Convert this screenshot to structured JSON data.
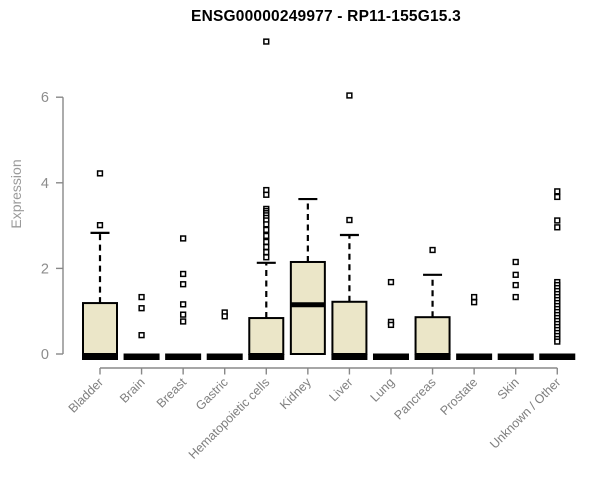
{
  "chart_data": {
    "type": "boxplot",
    "title": "ENSG00000249977 - RP11-155G15.3",
    "ylabel": "Expression",
    "xlabel": "",
    "yticks": [
      0,
      2,
      4,
      6
    ],
    "ylim": [
      0,
      7.6
    ],
    "grid": false,
    "legend": "none",
    "colors": {
      "box_fill": "#EBE6C8",
      "box_stroke": "#000000",
      "axis": "#888888",
      "tick_label": "#8c8c8c",
      "xlabel_color": "#7f7f7f",
      "title_color": "#000000"
    },
    "categories": [
      "Bladder",
      "Brain",
      "Breast",
      "Gastric",
      "Hematopoietic cells",
      "Kidney",
      "Liver",
      "Lung",
      "Pancreas",
      "Prostate",
      "Skin",
      "Unknown / Other"
    ],
    "series": [
      {
        "category": "Bladder",
        "whisker_low": 0,
        "q1": 0,
        "median": 0,
        "q3": 1.19,
        "whisker_high": 2.83,
        "outliers": [
          4.22,
          3.01
        ]
      },
      {
        "category": "Brain",
        "whisker_low": 0,
        "q1": 0,
        "median": 0,
        "q3": 0,
        "whisker_high": 0,
        "outliers": [
          1.33,
          1.07,
          0.44
        ]
      },
      {
        "category": "Breast",
        "whisker_low": 0,
        "q1": 0,
        "median": 0,
        "q3": 0,
        "whisker_high": 0,
        "outliers": [
          2.7,
          1.87,
          1.63,
          1.16,
          0.92,
          0.76
        ]
      },
      {
        "category": "Gastric",
        "whisker_low": 0,
        "q1": 0,
        "median": 0,
        "q3": 0,
        "whisker_high": 0,
        "outliers": [
          0.97,
          0.88
        ]
      },
      {
        "category": "Hematopoietic cells",
        "whisker_low": 0,
        "q1": 0,
        "median": 0,
        "q3": 0.84,
        "whisker_high": 2.13,
        "outliers": [
          7.3,
          3.83,
          3.72,
          3.39,
          3.34,
          3.29,
          3.24,
          3.18,
          3.12,
          3.03,
          2.9,
          2.76,
          2.62,
          2.5,
          2.38,
          2.26
        ]
      },
      {
        "category": "Kidney",
        "whisker_low": 0,
        "q1": 0,
        "median": 1.15,
        "q3": 2.15,
        "whisker_high": 3.62,
        "outliers": []
      },
      {
        "category": "Liver",
        "whisker_low": 0,
        "q1": 0,
        "median": 0,
        "q3": 1.22,
        "whisker_high": 2.78,
        "outliers": [
          6.04,
          3.13
        ]
      },
      {
        "category": "Lung",
        "whisker_low": 0,
        "q1": 0,
        "median": 0,
        "q3": 0,
        "whisker_high": 0,
        "outliers": [
          1.68,
          0.75,
          0.68
        ]
      },
      {
        "category": "Pancreas",
        "whisker_low": 0,
        "q1": 0,
        "median": 0,
        "q3": 0.86,
        "whisker_high": 1.85,
        "outliers": [
          2.43
        ]
      },
      {
        "category": "Prostate",
        "whisker_low": 0,
        "q1": 0,
        "median": 0,
        "q3": 0,
        "whisker_high": 0,
        "outliers": [
          1.33,
          1.21
        ]
      },
      {
        "category": "Skin",
        "whisker_low": 0,
        "q1": 0,
        "median": 0,
        "q3": 0,
        "whisker_high": 0,
        "outliers": [
          2.15,
          1.85,
          1.61,
          1.33
        ]
      },
      {
        "category": "Unknown / Other",
        "whisker_low": 0,
        "q1": 0,
        "median": 0,
        "q3": 0,
        "whisker_high": 0,
        "outliers": [
          3.8,
          3.67,
          3.12,
          2.96,
          1.68,
          1.61,
          1.54,
          1.47,
          1.4,
          1.33,
          1.26,
          1.19,
          1.12,
          1.05,
          0.98,
          0.91,
          0.84,
          0.77,
          0.7,
          0.63,
          0.56,
          0.49,
          0.42,
          0.35,
          0.29
        ]
      }
    ]
  }
}
